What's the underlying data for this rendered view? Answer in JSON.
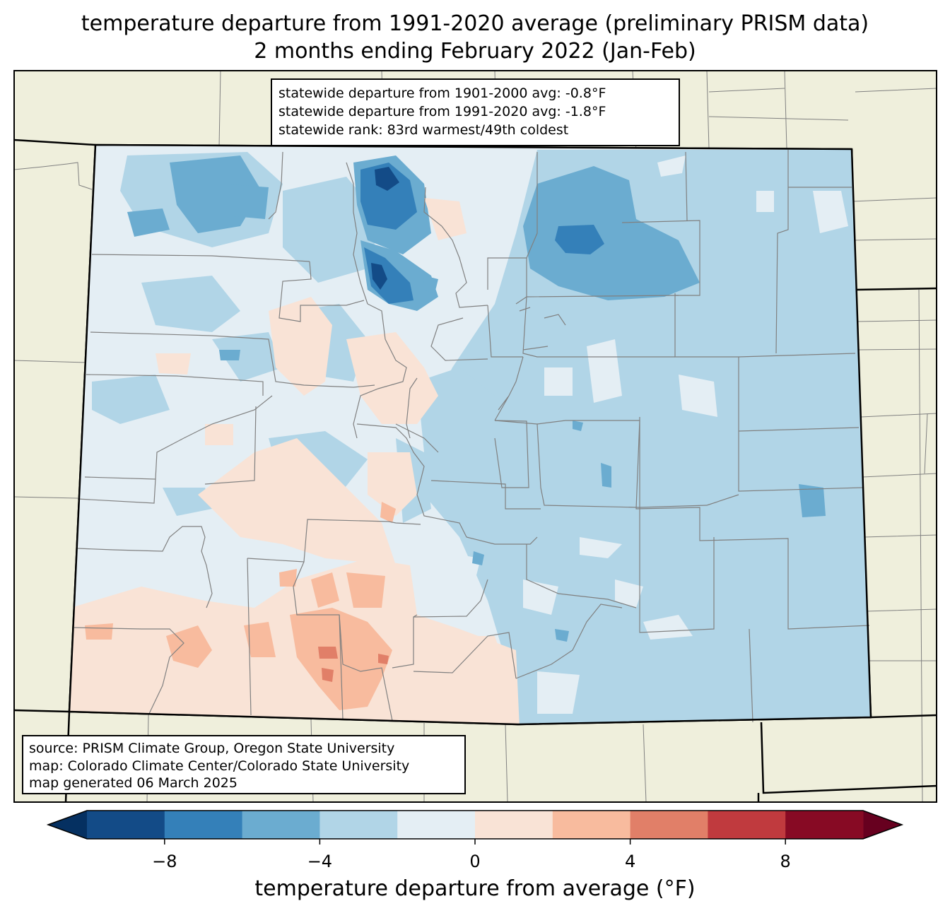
{
  "title": {
    "line1": "temperature departure from 1991-2020 average (preliminary PRISM data)",
    "line2": "2 months ending February 2022 (Jan-Feb)"
  },
  "stats_box": {
    "line1": "statewide departure from 1901-2000 avg: -0.8°F",
    "line2": "statewide departure from 1991-2020 avg: -1.8°F",
    "line3": "statewide rank: 83rd warmest/49th coldest"
  },
  "credits_box": {
    "line1": "source: PRISM Climate Group, Oregon State University",
    "line2": "map: Colorado Climate Center/Colorado State University",
    "line3": "map generated 06 March 2025"
  },
  "colorbar": {
    "label": "temperature departure from average (°F)",
    "min": -10,
    "max": 10,
    "bounds": [
      -10,
      -8,
      -6,
      -4,
      -2,
      0,
      2,
      4,
      6,
      8,
      10
    ],
    "colors": [
      "#134b87",
      "#3480b9",
      "#6bacd0",
      "#b1d5e7",
      "#e4eef4",
      "#f9e3d6",
      "#f8bb9e",
      "#e17f68",
      "#c03a3e",
      "#870a24"
    ],
    "under_color": "#053061",
    "over_color": "#67001f",
    "tick_values": [
      -8,
      -4,
      0,
      4,
      8
    ],
    "tick_labels": [
      "−8",
      "−4",
      "0",
      "4",
      "8"
    ]
  },
  "colors": {
    "land_background": "#efefdc",
    "state_border": "#000000",
    "county_border": "#808080"
  }
}
